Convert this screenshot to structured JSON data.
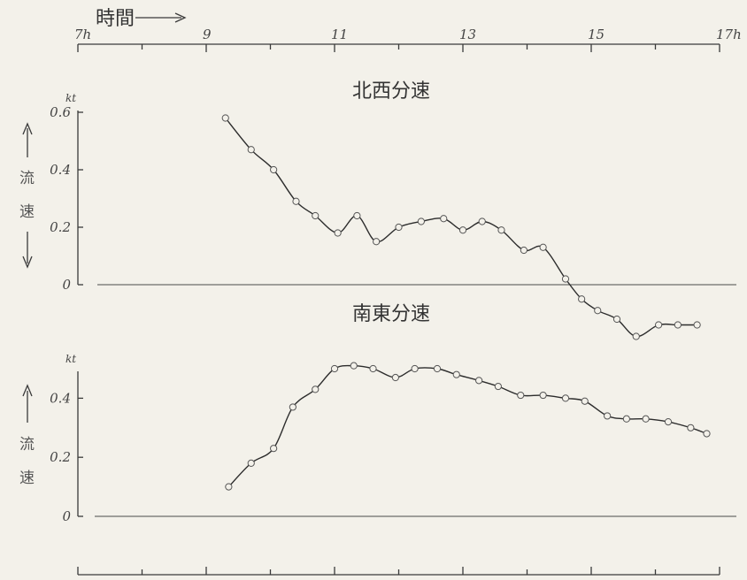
{
  "chart_data": [
    {
      "type": "line",
      "title": "北西分速",
      "time_label": "時間",
      "x_ticks": [
        "7h",
        "9",
        "11",
        "13",
        "15",
        "17h"
      ],
      "y_unit": "kt",
      "y_ticks": [
        "0.6",
        "0.4",
        "0.2",
        "0"
      ],
      "ylabel": [
        "流",
        "速"
      ],
      "xlim": [
        7,
        17
      ],
      "ylim": [
        -0.18,
        0.62
      ],
      "x": [
        9.3,
        9.7,
        10.05,
        10.4,
        10.7,
        11.05,
        11.35,
        11.65,
        12.0,
        12.35,
        12.7,
        13.0,
        13.3,
        13.6,
        13.95,
        14.25,
        14.6,
        14.85,
        15.1,
        15.4,
        15.7,
        16.05,
        16.35,
        16.65
      ],
      "values": [
        0.58,
        0.47,
        0.4,
        0.29,
        0.24,
        0.18,
        0.24,
        0.15,
        0.2,
        0.22,
        0.23,
        0.19,
        0.22,
        0.19,
        0.12,
        0.13,
        0.02,
        -0.05,
        -0.09,
        -0.12,
        -0.18,
        -0.14,
        -0.14,
        -0.14
      ]
    },
    {
      "type": "line",
      "title": "南東分速",
      "x_ticks": [
        "7h",
        "9",
        "11",
        "13",
        "15",
        "17h"
      ],
      "y_unit": "kt",
      "y_ticks": [
        "0.4",
        "0.2",
        "0"
      ],
      "ylabel": [
        "流",
        "速"
      ],
      "xlim": [
        7,
        17
      ],
      "ylim": [
        0,
        0.52
      ],
      "x": [
        9.35,
        9.7,
        10.05,
        10.35,
        10.7,
        11.0,
        11.3,
        11.6,
        11.95,
        12.25,
        12.6,
        12.9,
        13.25,
        13.55,
        13.9,
        14.25,
        14.6,
        14.9,
        15.25,
        15.55,
        15.85,
        16.2,
        16.55,
        16.8
      ],
      "values": [
        0.1,
        0.18,
        0.23,
        0.37,
        0.43,
        0.5,
        0.51,
        0.5,
        0.47,
        0.5,
        0.5,
        0.48,
        0.46,
        0.44,
        0.41,
        0.41,
        0.4,
        0.39,
        0.34,
        0.33,
        0.33,
        0.32,
        0.3,
        0.28
      ]
    }
  ]
}
